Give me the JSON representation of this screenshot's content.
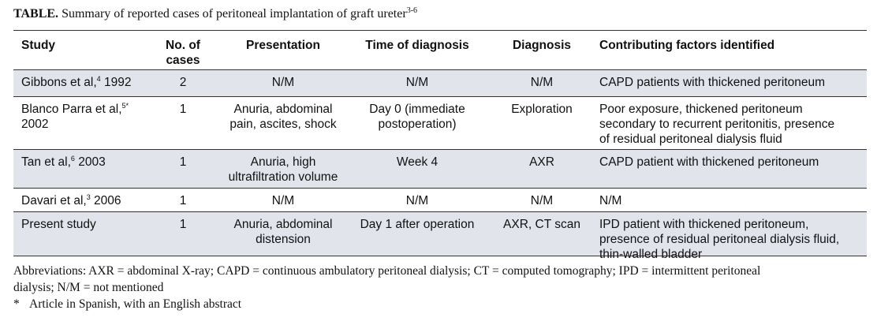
{
  "caption": {
    "label": "TABLE.",
    "text": "Summary of reported cases of peritoneal implantation of graft ureter",
    "refs": "3-6"
  },
  "columns": {
    "study": "Study",
    "cases_line1": "No. of",
    "cases_line2": "cases",
    "presentation": "Presentation",
    "time": "Time of diagnosis",
    "diagnosis": "Diagnosis",
    "factors": "Contributing factors identified"
  },
  "rows": [
    {
      "study_a": "Gibbons et al,",
      "ref": "4",
      "study_b": " 1992",
      "study_c": "",
      "cases": "2",
      "presentation": [
        "N/M"
      ],
      "time": [
        "N/M"
      ],
      "diagnosis": "N/M",
      "factors": [
        "CAPD patients with thickened peritoneum"
      ]
    },
    {
      "study_a": "Blanco Parra et al,",
      "ref": "5*",
      "study_b": "",
      "study_c": "2002",
      "cases": "1",
      "presentation": [
        "Anuria, abdominal",
        "pain, ascites, shock"
      ],
      "time": [
        "Day 0 (immediate",
        "postoperation)"
      ],
      "diagnosis": "Exploration",
      "factors": [
        "Poor exposure, thickened peritoneum",
        "secondary to recurrent peritonitis, presence",
        "of residual peritoneal dialysis fluid"
      ]
    },
    {
      "study_a": "Tan et al,",
      "ref": "6",
      "study_b": " 2003",
      "study_c": "",
      "cases": "1",
      "presentation": [
        "Anuria, high",
        "ultrafiltration volume"
      ],
      "time": [
        "Week 4"
      ],
      "diagnosis": "AXR",
      "factors": [
        "CAPD patient with thickened peritoneum"
      ]
    },
    {
      "study_a": "Davari et al,",
      "ref": "3",
      "study_b": " 2006",
      "study_c": "",
      "cases": "1",
      "presentation": [
        "N/M"
      ],
      "time": [
        "N/M"
      ],
      "diagnosis": "N/M",
      "factors": [
        "N/M"
      ]
    },
    {
      "study_a": "Present study",
      "ref": "",
      "study_b": "",
      "study_c": "",
      "cases": "1",
      "presentation": [
        "Anuria, abdominal",
        "distension"
      ],
      "time": [
        "Day 1 after operation"
      ],
      "diagnosis": "AXR, CT scan",
      "factors": [
        "IPD patient with thickened peritoneum,",
        "presence of residual peritoneal dialysis fluid,",
        "thin-walled bladder"
      ]
    }
  ],
  "footnotes": {
    "line1": "Abbreviations: AXR = abdominal X-ray; CAPD = continuous ambulatory peritoneal dialysis; CT = computed tomography; IPD = intermittent peritoneal",
    "line2": "dialysis; N/M = not mentioned",
    "star": "*",
    "line3": "Article in Spanish, with an English abstract"
  },
  "colors": {
    "band": "#e2e4ec",
    "rule": "#333333",
    "text": "#111111"
  }
}
